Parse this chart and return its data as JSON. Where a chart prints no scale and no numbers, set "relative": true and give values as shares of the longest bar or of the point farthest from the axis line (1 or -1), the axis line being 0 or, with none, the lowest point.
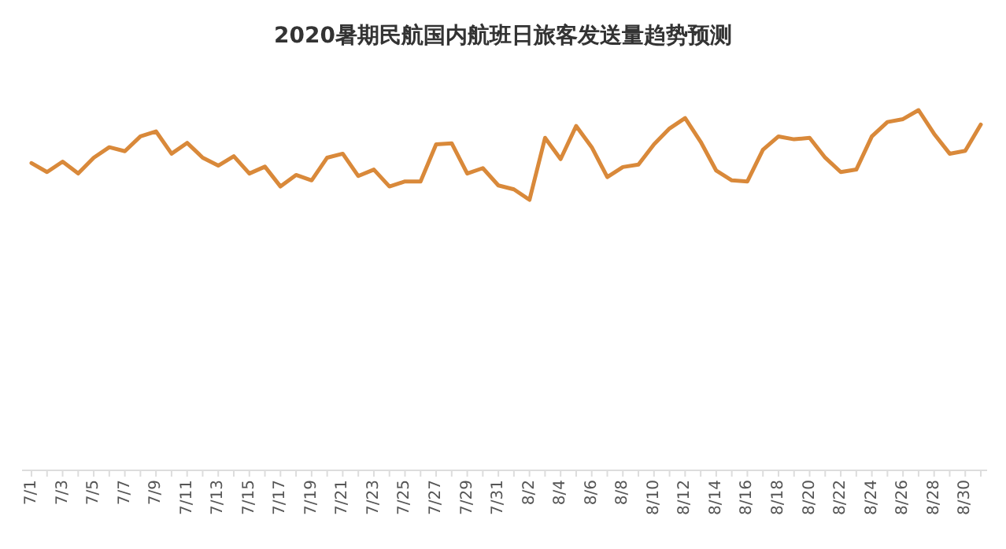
{
  "chart_data": {
    "type": "line",
    "title": "2020暑期民航国内航班日旅客发送量趋势预测",
    "relative": true,
    "marker": "none",
    "line_style": "solid",
    "categories": [
      "7/1",
      null,
      "7/3",
      null,
      "7/5",
      null,
      "7/7",
      null,
      "7/9",
      null,
      "7/11",
      null,
      "7/13",
      null,
      "7/15",
      null,
      "7/17",
      null,
      "7/19",
      null,
      "7/21",
      null,
      "7/23",
      null,
      "7/25",
      null,
      "7/27",
      null,
      "7/29",
      null,
      "7/31",
      null,
      "8/2",
      null,
      "8/4",
      null,
      "8/6",
      null,
      "8/8",
      null,
      "8/10",
      null,
      "8/12",
      null,
      "8/14",
      null,
      "8/16",
      null,
      "8/18",
      null,
      "8/20",
      null,
      "8/22",
      null,
      "8/24",
      null,
      "8/26",
      null,
      "8/28",
      null,
      "8/30",
      null
    ],
    "series": [
      {
        "color": "#d9893a",
        "values": [
          0.853,
          0.828,
          0.857,
          0.824,
          0.868,
          0.897,
          0.886,
          0.927,
          0.941,
          0.879,
          0.909,
          0.868,
          0.846,
          0.872,
          0.824,
          0.843,
          0.788,
          0.82,
          0.805,
          0.868,
          0.879,
          0.817,
          0.835,
          0.788,
          0.802,
          0.802,
          0.905,
          0.908,
          0.824,
          0.839,
          0.791,
          0.78,
          0.751,
          0.923,
          0.864,
          0.956,
          0.897,
          0.814,
          0.842,
          0.849,
          0.905,
          0.949,
          0.978,
          0.912,
          0.832,
          0.805,
          0.802,
          0.89,
          0.927,
          0.919,
          0.923,
          0.868,
          0.828,
          0.835,
          0.927,
          0.967,
          0.975,
          1,
          0.934,
          0.879,
          0.887,
          0.96
        ]
      }
    ]
  }
}
